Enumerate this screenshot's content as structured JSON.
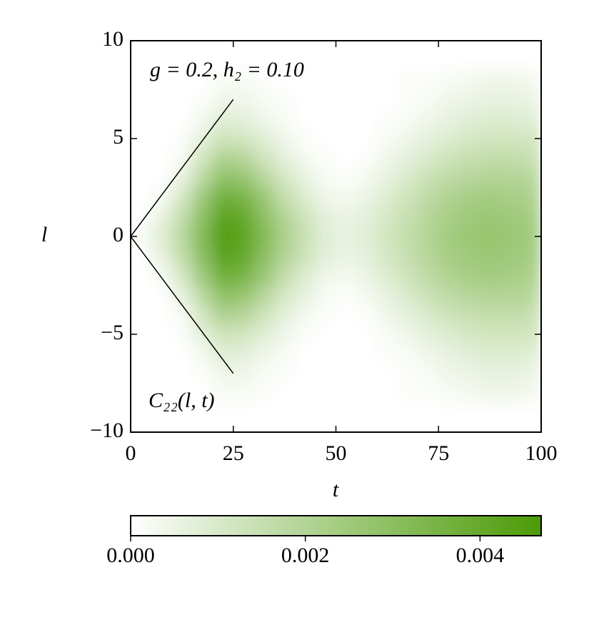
{
  "chart_data": {
    "type": "heatmap",
    "annotations": [
      "g = 0.2, h₂ = 0.10",
      "C₂₂(l, t)"
    ],
    "xlabel": "t",
    "ylabel": "l",
    "x": [
      2.5,
      7.5,
      12.5,
      17.5,
      22.5,
      27.5,
      32.5,
      37.5,
      42.5,
      47.5,
      52.5,
      57.5,
      62.5,
      67.5,
      72.5,
      77.5,
      82.5,
      87.5,
      92.5,
      97.5
    ],
    "y": [
      -8,
      -7,
      -6,
      -5,
      -4,
      -3,
      -2,
      -1,
      0,
      1,
      2,
      3,
      4,
      5,
      6,
      7,
      8
    ],
    "z": [
      [
        0,
        0,
        0,
        0,
        0.0002,
        0.0002,
        0.0001,
        0,
        0,
        0,
        0,
        0,
        0,
        0.0001,
        0.0001,
        0.0002,
        0.0003,
        0.0004,
        0.0004,
        0.0003
      ],
      [
        0,
        0,
        0,
        0.0001,
        0.0004,
        0.0004,
        0.0002,
        0.0001,
        0,
        0,
        0,
        0,
        0,
        0.0001,
        0.0002,
        0.0004,
        0.0005,
        0.0006,
        0.0006,
        0.0005
      ],
      [
        0,
        0,
        0,
        0.0003,
        0.0008,
        0.0007,
        0.0004,
        0.0002,
        0,
        0,
        0,
        0,
        0.0001,
        0.0002,
        0.0004,
        0.0006,
        0.0008,
        0.0009,
        0.0009,
        0.0008
      ],
      [
        0,
        0,
        0.0001,
        0.0007,
        0.0013,
        0.0012,
        0.0008,
        0.0004,
        0.0001,
        0,
        0,
        0,
        0.0002,
        0.0004,
        0.0007,
        0.0009,
        0.0011,
        0.0012,
        0.0012,
        0.0012
      ],
      [
        0,
        0,
        0.0002,
        0.0012,
        0.0021,
        0.0019,
        0.0013,
        0.0007,
        0.0003,
        0.0001,
        0,
        0.0001,
        0.0004,
        0.0007,
        0.001,
        0.0013,
        0.0015,
        0.0016,
        0.0016,
        0.0015
      ],
      [
        0,
        0,
        0.0006,
        0.0018,
        0.0029,
        0.0027,
        0.0019,
        0.0011,
        0.0006,
        0.0002,
        0.0001,
        0.0003,
        0.0006,
        0.001,
        0.0014,
        0.0017,
        0.0019,
        0.002,
        0.002,
        0.0019
      ],
      [
        0,
        0.0002,
        0.0011,
        0.0025,
        0.0037,
        0.0035,
        0.0026,
        0.0016,
        0.0009,
        0.0004,
        0.0003,
        0.0005,
        0.0009,
        0.0013,
        0.0017,
        0.0021,
        0.0023,
        0.0024,
        0.0023,
        0.0022
      ],
      [
        0,
        0.0006,
        0.0016,
        0.003,
        0.0043,
        0.004,
        0.003,
        0.002,
        0.0013,
        0.0007,
        0.0005,
        0.0007,
        0.0011,
        0.0015,
        0.0019,
        0.0023,
        0.0025,
        0.0026,
        0.0025,
        0.0024
      ],
      [
        0.0002,
        0.0008,
        0.0018,
        0.0032,
        0.0045,
        0.0042,
        0.0032,
        0.0022,
        0.0014,
        0.0008,
        0.0006,
        0.0008,
        0.0012,
        0.0016,
        0.002,
        0.0024,
        0.0026,
        0.0027,
        0.0026,
        0.0025
      ],
      [
        0,
        0.0006,
        0.0016,
        0.003,
        0.0043,
        0.004,
        0.003,
        0.002,
        0.0013,
        0.0007,
        0.0005,
        0.0007,
        0.0011,
        0.0015,
        0.0019,
        0.0023,
        0.0025,
        0.0026,
        0.0025,
        0.0024
      ],
      [
        0,
        0.0002,
        0.0011,
        0.0025,
        0.0037,
        0.0035,
        0.0026,
        0.0016,
        0.0009,
        0.0004,
        0.0003,
        0.0005,
        0.0009,
        0.0013,
        0.0017,
        0.0021,
        0.0023,
        0.0024,
        0.0023,
        0.0022
      ],
      [
        0,
        0,
        0.0006,
        0.0018,
        0.0029,
        0.0027,
        0.0019,
        0.0011,
        0.0006,
        0.0002,
        0.0001,
        0.0003,
        0.0006,
        0.001,
        0.0014,
        0.0017,
        0.0019,
        0.002,
        0.002,
        0.0019
      ],
      [
        0,
        0,
        0.0002,
        0.0012,
        0.0021,
        0.0019,
        0.0013,
        0.0007,
        0.0003,
        0.0001,
        0,
        0.0001,
        0.0004,
        0.0007,
        0.001,
        0.0013,
        0.0015,
        0.0016,
        0.0016,
        0.0015
      ],
      [
        0,
        0,
        0.0001,
        0.0007,
        0.0013,
        0.0012,
        0.0008,
        0.0004,
        0.0001,
        0,
        0,
        0,
        0.0002,
        0.0004,
        0.0007,
        0.0009,
        0.0011,
        0.0012,
        0.0012,
        0.0012
      ],
      [
        0,
        0,
        0,
        0.0003,
        0.0008,
        0.0007,
        0.0004,
        0.0002,
        0,
        0,
        0,
        0,
        0.0001,
        0.0002,
        0.0004,
        0.0006,
        0.0008,
        0.0009,
        0.0009,
        0.0008
      ],
      [
        0,
        0,
        0,
        0.0001,
        0.0004,
        0.0004,
        0.0002,
        0.0001,
        0,
        0,
        0,
        0,
        0,
        0.0001,
        0.0002,
        0.0004,
        0.0005,
        0.0006,
        0.0006,
        0.0005
      ],
      [
        0,
        0,
        0,
        0,
        0.0002,
        0.0002,
        0.0001,
        0,
        0,
        0,
        0,
        0,
        0,
        0.0001,
        0.0001,
        0.0002,
        0.0003,
        0.0004,
        0.0004,
        0.0003
      ]
    ],
    "lines": [
      {
        "x": [
          0,
          25
        ],
        "y": [
          0,
          7
        ]
      },
      {
        "x": [
          0,
          25
        ],
        "y": [
          0,
          -7
        ]
      }
    ],
    "xlim": [
      0,
      100
    ],
    "xticks": [
      0,
      25,
      50,
      75,
      100
    ],
    "ylim": [
      -10,
      10
    ],
    "yticks": [
      {
        "value": -10,
        "label": "−10"
      },
      {
        "value": -5,
        "label": "−5"
      },
      0,
      5,
      10
    ],
    "zlim": [
      0,
      0.0047
    ],
    "zticks": [
      {
        "value": 0,
        "label": "0.000"
      },
      0.002,
      0.004
    ],
    "colormap": [
      "#ffffff",
      "#4b9a06"
    ]
  }
}
